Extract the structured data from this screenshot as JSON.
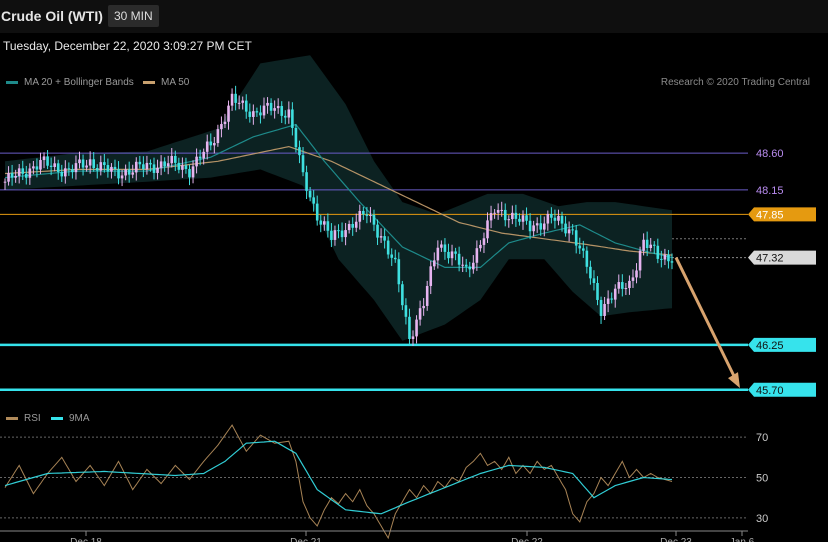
{
  "header": {
    "title": "Crude Oil (WTI)",
    "timeframe": "30 MIN",
    "datetime": "Tuesday, December 22, 2020 3:09:27 PM CET"
  },
  "legend": {
    "ma20": "MA 20 + Bollinger Bands",
    "ma50": "MA 50",
    "credit": "Research © 2020 Trading Central",
    "rsi": "RSI",
    "rsi_ma": "9MA"
  },
  "colors": {
    "ma20": "#1e8a8a",
    "ma50": "#c8a06e",
    "bullish": "#e6b4f0",
    "bearish": "#3fe0e0",
    "resistance": "#6a5cc8",
    "pivot": "#e59a10",
    "support": "#36e3ec",
    "rsi": "#b08a5a"
  },
  "chart_data": [
    {
      "type": "candlestick",
      "title": "Crude Oil (WTI)",
      "ylim": [
        45.55,
        49.3
      ],
      "x_ticks": [
        "Dec 18",
        "Dec 21",
        "Dec 22",
        "Dec 23",
        "Jan 6"
      ],
      "levels": [
        {
          "label": "48.60",
          "value": 48.6,
          "kind": "resistance"
        },
        {
          "label": "48.15",
          "value": 48.15,
          "kind": "resistance"
        },
        {
          "label": "47.85",
          "value": 47.85,
          "kind": "pivot"
        },
        {
          "label": "47.32",
          "value": 47.32,
          "kind": "last"
        },
        {
          "label": "46.25",
          "value": 46.25,
          "kind": "support"
        },
        {
          "label": "45.70",
          "value": 45.7,
          "kind": "support"
        }
      ],
      "close_anchors": [
        [
          0,
          48.25
        ],
        [
          10,
          48.48
        ],
        [
          18,
          48.38
        ],
        [
          24,
          48.5
        ],
        [
          31,
          48.35
        ],
        [
          38,
          48.42
        ],
        [
          46,
          48.48
        ],
        [
          52,
          48.4
        ],
        [
          58,
          48.7
        ],
        [
          64,
          49.25
        ],
        [
          70,
          49.1
        ],
        [
          76,
          49.15
        ],
        [
          80,
          49.1
        ],
        [
          84,
          48.3
        ],
        [
          88,
          47.85
        ],
        [
          92,
          47.55
        ],
        [
          98,
          47.75
        ],
        [
          102,
          47.85
        ],
        [
          106,
          47.6
        ],
        [
          110,
          47.2
        ],
        [
          114,
          46.35
        ],
        [
          118,
          46.75
        ],
        [
          122,
          47.5
        ],
        [
          126,
          47.35
        ],
        [
          130,
          47.15
        ],
        [
          134,
          47.5
        ],
        [
          138,
          47.9
        ],
        [
          142,
          47.85
        ],
        [
          148,
          47.7
        ],
        [
          154,
          47.8
        ],
        [
          160,
          47.65
        ],
        [
          164,
          47.2
        ],
        [
          168,
          46.7
        ],
        [
          172,
          46.9
        ],
        [
          176,
          47.0
        ],
        [
          180,
          47.5
        ],
        [
          184,
          47.35
        ],
        [
          188,
          47.32
        ]
      ],
      "ma20": [
        [
          0,
          48.3
        ],
        [
          20,
          48.38
        ],
        [
          40,
          48.38
        ],
        [
          58,
          48.55
        ],
        [
          70,
          48.8
        ],
        [
          82,
          48.95
        ],
        [
          90,
          48.5
        ],
        [
          100,
          48.0
        ],
        [
          112,
          47.45
        ],
        [
          124,
          47.2
        ],
        [
          134,
          47.2
        ],
        [
          142,
          47.5
        ],
        [
          152,
          47.62
        ],
        [
          162,
          47.72
        ],
        [
          172,
          47.5
        ],
        [
          182,
          47.38
        ],
        [
          188,
          47.32
        ]
      ],
      "ma50": [
        [
          0,
          48.35
        ],
        [
          20,
          48.4
        ],
        [
          40,
          48.4
        ],
        [
          60,
          48.5
        ],
        [
          80,
          48.68
        ],
        [
          92,
          48.5
        ],
        [
          104,
          48.25
        ],
        [
          116,
          48.0
        ],
        [
          128,
          47.75
        ],
        [
          140,
          47.62
        ],
        [
          152,
          47.55
        ],
        [
          164,
          47.48
        ],
        [
          176,
          47.4
        ],
        [
          188,
          47.35
        ]
      ],
      "bb_upper": [
        [
          0,
          48.5
        ],
        [
          20,
          48.6
        ],
        [
          40,
          48.62
        ],
        [
          60,
          48.9
        ],
        [
          72,
          49.7
        ],
        [
          86,
          49.8
        ],
        [
          96,
          49.2
        ],
        [
          104,
          48.5
        ],
        [
          112,
          48.0
        ],
        [
          122,
          47.85
        ],
        [
          136,
          48.1
        ],
        [
          146,
          48.1
        ],
        [
          156,
          47.95
        ],
        [
          164,
          48.0
        ],
        [
          172,
          48.0
        ],
        [
          180,
          47.95
        ],
        [
          188,
          47.9
        ]
      ],
      "bb_lower": [
        [
          0,
          48.15
        ],
        [
          20,
          48.2
        ],
        [
          40,
          48.25
        ],
        [
          58,
          48.3
        ],
        [
          72,
          48.4
        ],
        [
          84,
          48.2
        ],
        [
          94,
          47.3
        ],
        [
          104,
          46.8
        ],
        [
          112,
          46.3
        ],
        [
          124,
          46.5
        ],
        [
          134,
          46.8
        ],
        [
          142,
          47.3
        ],
        [
          152,
          47.3
        ],
        [
          160,
          46.9
        ],
        [
          168,
          46.6
        ],
        [
          176,
          46.65
        ],
        [
          188,
          46.7
        ]
      ]
    },
    {
      "type": "line",
      "title": "RSI",
      "ylim": [
        20,
        80
      ],
      "y_ticks": [
        70,
        50,
        30
      ],
      "series": [
        {
          "name": "RSI",
          "points": [
            [
              0,
              45
            ],
            [
              4,
              56
            ],
            [
              8,
              42
            ],
            [
              12,
              52
            ],
            [
              16,
              60
            ],
            [
              20,
              48
            ],
            [
              24,
              56
            ],
            [
              28,
              46
            ],
            [
              32,
              58
            ],
            [
              36,
              44
            ],
            [
              40,
              54
            ],
            [
              44,
              47
            ],
            [
              48,
              56
            ],
            [
              52,
              49
            ],
            [
              56,
              58
            ],
            [
              60,
              66
            ],
            [
              64,
              76
            ],
            [
              68,
              63
            ],
            [
              72,
              71
            ],
            [
              76,
              67
            ],
            [
              80,
              68
            ],
            [
              82,
              58
            ],
            [
              84,
              38
            ],
            [
              86,
              30
            ],
            [
              88,
              26
            ],
            [
              90,
              34
            ],
            [
              92,
              40
            ],
            [
              94,
              37
            ],
            [
              96,
              42
            ],
            [
              98,
              38
            ],
            [
              100,
              44
            ],
            [
              102,
              36
            ],
            [
              104,
              32
            ],
            [
              106,
              26
            ],
            [
              108,
              20
            ],
            [
              110,
              32
            ],
            [
              112,
              38
            ],
            [
              114,
              44
            ],
            [
              116,
              40
            ],
            [
              118,
              46
            ],
            [
              120,
              42
            ],
            [
              122,
              48
            ],
            [
              124,
              45
            ],
            [
              126,
              50
            ],
            [
              128,
              48
            ],
            [
              130,
              55
            ],
            [
              132,
              58
            ],
            [
              134,
              62
            ],
            [
              136,
              56
            ],
            [
              138,
              58
            ],
            [
              140,
              54
            ],
            [
              142,
              60
            ],
            [
              144,
              52
            ],
            [
              146,
              56
            ],
            [
              148,
              52
            ],
            [
              150,
              58
            ],
            [
              152,
              54
            ],
            [
              154,
              56
            ],
            [
              156,
              50
            ],
            [
              158,
              44
            ],
            [
              160,
              32
            ],
            [
              162,
              28
            ],
            [
              164,
              38
            ],
            [
              166,
              42
            ],
            [
              168,
              50
            ],
            [
              170,
              46
            ],
            [
              172,
              52
            ],
            [
              174,
              58
            ],
            [
              176,
              50
            ],
            [
              178,
              54
            ],
            [
              180,
              50
            ],
            [
              182,
              52
            ],
            [
              184,
              50
            ],
            [
              188,
              48
            ]
          ]
        },
        {
          "name": "9MA",
          "points": [
            [
              0,
              46
            ],
            [
              12,
              52
            ],
            [
              28,
              53
            ],
            [
              48,
              51
            ],
            [
              56,
              52
            ],
            [
              62,
              58
            ],
            [
              68,
              67
            ],
            [
              76,
              68
            ],
            [
              82,
              62
            ],
            [
              88,
              44
            ],
            [
              96,
              34
            ],
            [
              106,
              32
            ],
            [
              114,
              38
            ],
            [
              124,
              45
            ],
            [
              134,
              52
            ],
            [
              142,
              56
            ],
            [
              152,
              55
            ],
            [
              160,
              52
            ],
            [
              166,
              40
            ],
            [
              172,
              46
            ],
            [
              180,
              50
            ],
            [
              188,
              49
            ]
          ]
        }
      ]
    }
  ]
}
